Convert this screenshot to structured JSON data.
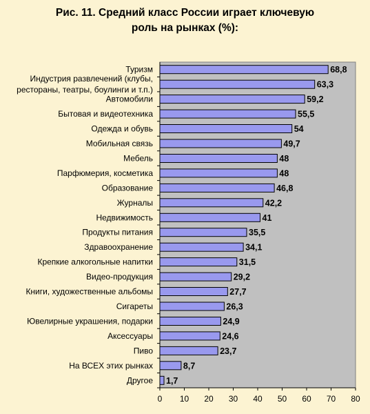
{
  "chart_data": {
    "type": "bar",
    "orientation": "horizontal",
    "title_lines": [
      "Рис. 11. Средний класс России играет ключевую",
      "роль на рынках (%):"
    ],
    "categories": [
      [
        "Туризм"
      ],
      [
        "Индустрия развлечений (клубы,",
        "рестораны, театры, боулинги и т.п.)"
      ],
      [
        "Автомобили"
      ],
      [
        "Бытовая и видеотехника"
      ],
      [
        "Одежда и обувь"
      ],
      [
        "Мобильная связь"
      ],
      [
        "Мебель"
      ],
      [
        "Парфюмерия, косметика"
      ],
      [
        "Образование"
      ],
      [
        "Журналы"
      ],
      [
        "Недвижимость"
      ],
      [
        "Продукты питания"
      ],
      [
        "Здравоохранение"
      ],
      [
        "Крепкие алкогольные напитки"
      ],
      [
        "Видео-продукция"
      ],
      [
        "Книги, художественные альбомы"
      ],
      [
        "Сигареты"
      ],
      [
        "Ювелирные украшения, подарки"
      ],
      [
        "Аксессуары"
      ],
      [
        "Пиво"
      ],
      [
        "На ВСЕХ этих рынках"
      ],
      [
        "Другое"
      ]
    ],
    "values": [
      68.8,
      63.3,
      59.2,
      55.5,
      54,
      49.7,
      48,
      48,
      46.8,
      42.2,
      41,
      35.5,
      34.1,
      31.5,
      29.2,
      27.7,
      26.3,
      24.9,
      24.6,
      23.7,
      8.7,
      1.7
    ],
    "value_labels": [
      "68,8",
      "63,3",
      "59,2",
      "55,5",
      "54",
      "49,7",
      "48",
      "48",
      "46,8",
      "42,2",
      "41",
      "35,5",
      "34,1",
      "31,5",
      "29,2",
      "27,7",
      "26,3",
      "24,9",
      "24,6",
      "23,7",
      "8,7",
      "1,7"
    ],
    "xlim": [
      0,
      80
    ],
    "xticks": [
      0,
      10,
      20,
      30,
      40,
      50,
      60,
      70,
      80
    ],
    "grid": false,
    "legend": "none",
    "colors": {
      "background": "#fcf3d2",
      "plot_area": "#c0c0c0",
      "bar_fill": "#9999ee",
      "bar_stroke": "#000000"
    }
  }
}
